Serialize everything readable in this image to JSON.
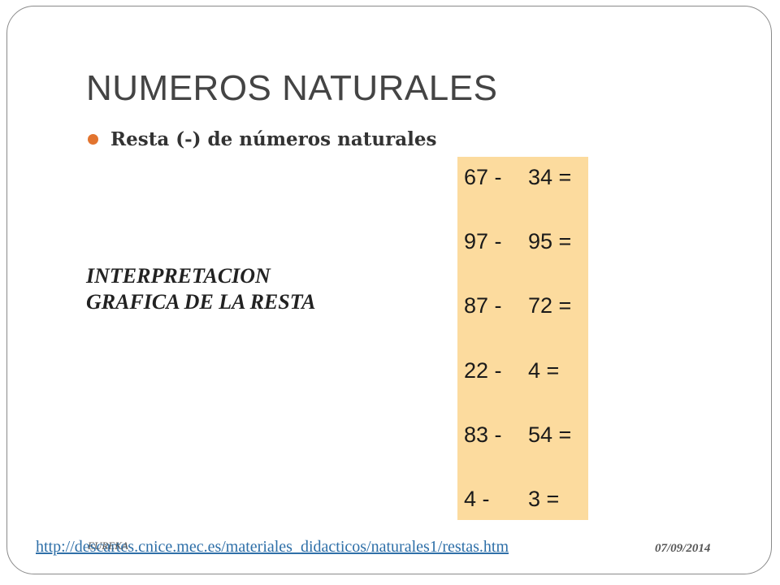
{
  "slide": {
    "title": "NUMEROS NATURALES",
    "bullet": "Resta (-) de números naturales",
    "bullet_color": "#E2742F",
    "interpretation_line1": "INTERPRETACION",
    "interpretation_line2": "GRAFICA DE LA RESTA"
  },
  "subtractions": {
    "background": "#FCDB9E",
    "rows": [
      {
        "a": "67 -",
        "b": "34 ="
      },
      {
        "a": "97 -",
        "b": "95 ="
      },
      {
        "a": "87 -",
        "b": "72 ="
      },
      {
        "a": "22 -",
        "b": "4 ="
      },
      {
        "a": "83 -",
        "b": "54 ="
      },
      {
        "a": "4 -",
        "b": "3 ="
      }
    ]
  },
  "footer": {
    "link_text": "http://descartes.cnice.mec.es/materiales_didacticos/naturales1/restas.htm",
    "link_color": "#2E6FA8",
    "brand": "EUREKA",
    "date": "07/09/2014"
  }
}
